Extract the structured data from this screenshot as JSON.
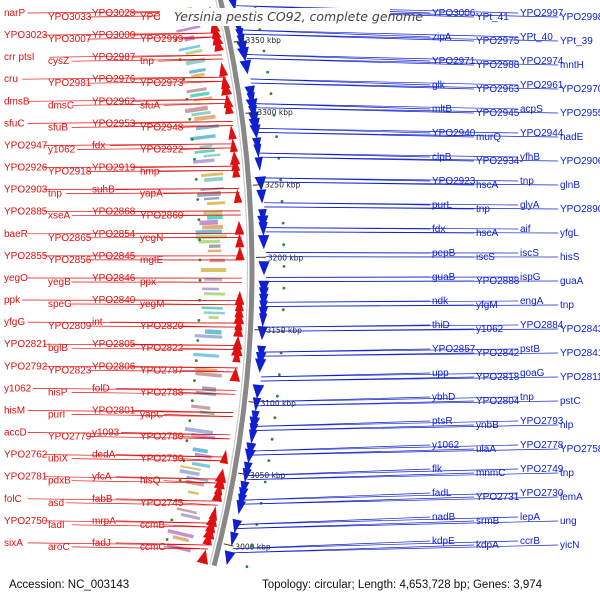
{
  "title": "Yersinia pestis CO92, complete genome",
  "footer": {
    "accession": "Accession: NC_003143",
    "summary": "Topology: circular; Length: 4,653,728 bp; Genes: 3,974"
  },
  "colors": {
    "forward": "#e01010",
    "reverse": "#1020d0",
    "trna": "#33cccc",
    "backbone": "#888888",
    "tick": "#2a8a2a"
  },
  "ticks": [
    "3350 kbp",
    "3300 kbp",
    "3250 kbp",
    "3200 kbp",
    "3150 kbp",
    "3100 kbp",
    "3050 kbp",
    "3000 kbp"
  ],
  "left_labels": [
    "narP",
    "YPO3033",
    "YPO3028",
    "YPO3009",
    "YPO3023",
    "YPO3007",
    "YPO3000",
    "YPO2999",
    "crr ptsI",
    "cysZ",
    "YPO2987",
    "tnp",
    "cru",
    "YPO2981",
    "YPO2976",
    "YPO2973",
    "dmsB",
    "dmsC",
    "YPO2962",
    "sfuA",
    "sfuC",
    "sfuB",
    "YPO2953",
    "YPO2948",
    "YPO2947",
    "y1062",
    "fdx",
    "YPO2922",
    "YPO2926",
    "YPO2918",
    "YPO2919",
    "hmp",
    "YPO2903",
    "tnp",
    "suhB",
    "yapA",
    "YPO2885",
    "xseA",
    "YPO2868",
    "YPO2860",
    "baeR",
    "YPO2865",
    "YPO2854",
    "yegN",
    "YPO2855",
    "YPO2856",
    "YPO2845",
    "mgtE",
    "yegO",
    "yegB",
    "YPO2846",
    "ppx",
    "ppk",
    "speG",
    "YPO2840",
    "yegM",
    "yfgG",
    "YPO2809",
    "int",
    "YPO2820",
    "YPO2821",
    "bglB",
    "YPO2805",
    "YPO2822",
    "YPO2792",
    "YPO2823",
    "YPO2806",
    "YPO2797",
    "y1062",
    "hisP",
    "folD",
    "YPO2788",
    "hisM",
    "purI",
    "YPO2801",
    "yapC",
    "accD",
    "YPO2779",
    "y1093",
    "YPO2780",
    "YPO2762",
    "ubiX",
    "dedA",
    "YPO2790",
    "YPO2781",
    "pdxB",
    "yfcA",
    "hisQ",
    "folC",
    "asd",
    "fabB",
    "YPO2745",
    "YPO2750",
    "fadI",
    "mrpA",
    "ccmB",
    "sixA",
    "aroC",
    "fadJ",
    "ccmC"
  ],
  "right_labels": [
    "YPO3006",
    "YPt_41",
    "YPO2997",
    "YPO2998",
    "zipA",
    "YPO2975",
    "YPt_40",
    "YPt_39",
    "YPO2971",
    "YPO2988",
    "YPO2974",
    "mntH",
    "glk",
    "YPO2963",
    "YPO2961",
    "YPO2970",
    "mltB",
    "YPO2945",
    "acpS",
    "YPO2955",
    "YPO2940",
    "murQ",
    "YPO2944",
    "nadE",
    "clpB",
    "YPO2934",
    "yfhB",
    "YPO2906",
    "YPO2923",
    "hscA",
    "tnp",
    "glnB",
    "purL",
    "tnp",
    "glyA",
    "YPO2890",
    "fdx",
    "hscA",
    "aif",
    "yfgL",
    "pepB",
    "iscS",
    "iscS",
    "hisS",
    "guaB",
    "YPO2888",
    "ispG",
    "guaA",
    "ndk",
    "yfgM",
    "engA",
    "tnp",
    "thiD",
    "y1062",
    "YPO2884",
    "YPO2843",
    "YPO2857",
    "YPO2842",
    "pstB",
    "YPO2841",
    "upp",
    "YPO2818",
    "goaG",
    "YPO2811",
    "ybhD",
    "YPO2804",
    "tnp",
    "pstC",
    "ptsR",
    "ynbB",
    "YPO2793",
    "nlp",
    "y1062",
    "ulaA",
    "YPO2778",
    "YPO2758",
    "flk",
    "mnmC",
    "YPO2749",
    "tnp",
    "fadL",
    "YPO2731",
    "YPO2730",
    "lemA",
    "nadB",
    "srmB",
    "lepA",
    "ung",
    "kdpE",
    "kdpA",
    "ccrB",
    "yicN"
  ]
}
